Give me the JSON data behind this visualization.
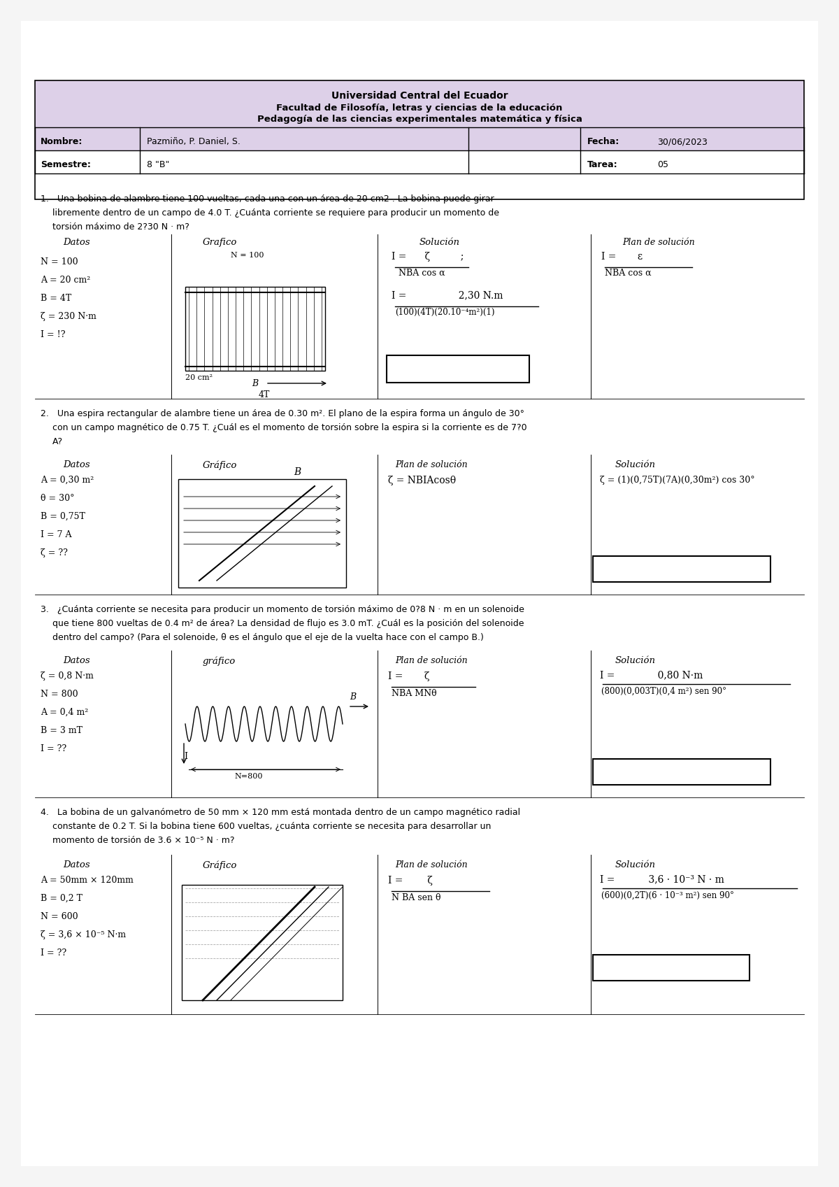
{
  "bg_color": "#f5f5f5",
  "page_bg": "#ffffff",
  "page_width": 12.0,
  "page_height": 16.97,
  "dpi": 100,
  "header": {
    "university": "Universidad Central del Ecuador",
    "faculty": "Facultad de Filosofía, letras y ciencias de la educación",
    "program": "Pedagogía de las ciencias experimentales matemática y física",
    "nombre_label": "Nombre:",
    "nombre_value": "Pazmiño, P. Daniel, S.",
    "fecha_label": "Fecha:",
    "fecha_value": "30/06/2023",
    "semestre_label": "Semestre:",
    "semestre_value": "8 \"B\"",
    "tarea_label": "Tarea:",
    "tarea_value": "05"
  }
}
